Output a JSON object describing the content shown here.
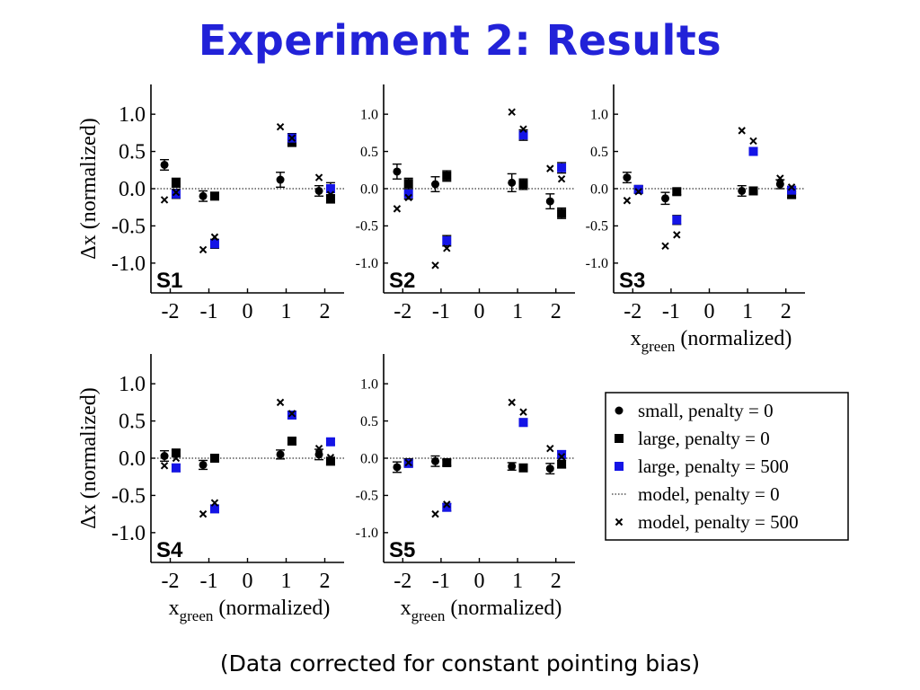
{
  "title": "Experiment 2: Results",
  "footer": "(Data corrected for constant pointing bias)",
  "colors": {
    "title": "#2222d8",
    "blue_series": "#1414e6",
    "black": "#000000"
  },
  "chart_data": [
    {
      "type": "scatter",
      "panel": "S1",
      "ylabel": "Δx (normalized)",
      "xlabel": "",
      "ylim": [
        -1.4,
        1.4
      ],
      "xlim": [
        -2.5,
        2.5
      ],
      "yticks": [
        "1.0",
        "0.5",
        "0.0",
        "-0.5",
        "-1.0"
      ],
      "xticks": [
        "-2",
        "-1",
        "0",
        "1",
        "2"
      ],
      "small_p0": [
        [
          -2.15,
          0.32,
          0.07
        ],
        [
          -1.15,
          -0.1,
          0.07
        ],
        [
          0.85,
          0.12,
          0.1
        ],
        [
          1.85,
          -0.03,
          0.07
        ]
      ],
      "large_p0": [
        [
          -1.85,
          0.08,
          0.06
        ],
        [
          -0.85,
          -0.1,
          0.05
        ],
        [
          1.15,
          0.62,
          0.04
        ],
        [
          2.15,
          -0.14,
          0.05
        ]
      ],
      "large_p500": [
        [
          -1.85,
          -0.07,
          0.06
        ],
        [
          -0.85,
          -0.74,
          0.06
        ],
        [
          1.15,
          0.68,
          0.06
        ],
        [
          2.15,
          0.0,
          0.08
        ]
      ],
      "model_p500": [
        [
          -2.15,
          -0.15
        ],
        [
          -1.85,
          -0.05
        ],
        [
          -1.15,
          -0.82
        ],
        [
          -0.85,
          -0.65
        ],
        [
          0.85,
          0.83
        ],
        [
          1.15,
          0.68
        ],
        [
          1.85,
          0.15
        ],
        [
          2.15,
          -0.08
        ]
      ]
    },
    {
      "type": "scatter",
      "panel": "S2",
      "ylabel": "",
      "xlabel": "",
      "ylim": [
        -1.4,
        1.4
      ],
      "xlim": [
        -2.5,
        2.5
      ],
      "yticks": [
        "1.0",
        "0.5",
        "0.0",
        "-0.5",
        "-1.0"
      ],
      "xticks": [
        "-2",
        "-1",
        "0",
        "1",
        "2"
      ],
      "small_p0": [
        [
          -2.15,
          0.23,
          0.1
        ],
        [
          -1.15,
          0.06,
          0.1
        ],
        [
          0.85,
          0.08,
          0.12
        ],
        [
          1.85,
          -0.17,
          0.1
        ]
      ],
      "large_p0": [
        [
          -1.85,
          0.07,
          0.07
        ],
        [
          -0.85,
          0.17,
          0.07
        ],
        [
          1.15,
          0.06,
          0.07
        ],
        [
          2.15,
          -0.33,
          0.07
        ]
      ],
      "large_p500": [
        [
          -1.85,
          -0.07,
          0.07
        ],
        [
          -0.85,
          -0.7,
          0.07
        ],
        [
          1.15,
          0.72,
          0.07
        ],
        [
          2.15,
          0.28,
          0.07
        ]
      ],
      "model_p500": [
        [
          -2.15,
          -0.27
        ],
        [
          -1.85,
          -0.12
        ],
        [
          -1.15,
          -1.03
        ],
        [
          -0.85,
          -0.8
        ],
        [
          0.85,
          1.03
        ],
        [
          1.15,
          0.8
        ],
        [
          1.85,
          0.27
        ],
        [
          2.15,
          0.13
        ]
      ]
    },
    {
      "type": "scatter",
      "panel": "S3",
      "ylabel": "",
      "xlabel": "x_green (normalized)",
      "ylim": [
        -1.4,
        1.4
      ],
      "xlim": [
        -2.5,
        2.5
      ],
      "yticks": [
        "1.0",
        "0.5",
        "0.0",
        "-0.5",
        "-1.0"
      ],
      "xticks": [
        "-2",
        "-1",
        "0",
        "1",
        "2"
      ],
      "small_p0": [
        [
          -2.15,
          0.15,
          0.07
        ],
        [
          -1.15,
          -0.13,
          0.08
        ],
        [
          0.85,
          -0.03,
          0.07
        ],
        [
          1.85,
          0.06,
          0.06
        ]
      ],
      "large_p0": [
        [
          -1.85,
          -0.01,
          0.04
        ],
        [
          -0.85,
          -0.04,
          0.04
        ],
        [
          1.15,
          -0.03,
          0.04
        ],
        [
          2.15,
          -0.08,
          0.04
        ]
      ],
      "large_p500": [
        [
          -1.85,
          -0.01,
          0.05
        ],
        [
          -0.85,
          -0.42,
          0.06
        ],
        [
          1.15,
          0.5,
          0.05
        ],
        [
          2.15,
          -0.02,
          0.05
        ]
      ],
      "model_p500": [
        [
          -2.15,
          -0.16
        ],
        [
          -1.85,
          -0.04
        ],
        [
          -1.15,
          -0.77
        ],
        [
          -0.85,
          -0.62
        ],
        [
          0.85,
          0.78
        ],
        [
          1.15,
          0.64
        ],
        [
          1.85,
          0.14
        ],
        [
          2.15,
          0.02
        ]
      ]
    },
    {
      "type": "scatter",
      "panel": "S4",
      "ylabel": "Δx (normalized)",
      "xlabel": "x_green (normalized)",
      "ylim": [
        -1.4,
        1.4
      ],
      "xlim": [
        -2.5,
        2.5
      ],
      "yticks": [
        "1.0",
        "0.5",
        "0.0",
        "-0.5",
        "-1.0"
      ],
      "xticks": [
        "-2",
        "-1",
        "0",
        "1",
        "2"
      ],
      "small_p0": [
        [
          -2.15,
          0.03,
          0.07
        ],
        [
          -1.15,
          -0.09,
          0.06
        ],
        [
          0.85,
          0.05,
          0.06
        ],
        [
          1.85,
          0.05,
          0.07
        ]
      ],
      "large_p0": [
        [
          -1.85,
          0.07,
          0.04
        ],
        [
          -0.85,
          0.0,
          0.04
        ],
        [
          1.15,
          0.23,
          0.04
        ],
        [
          2.15,
          -0.04,
          0.05
        ]
      ],
      "large_p500": [
        [
          -1.85,
          -0.13,
          0.05
        ],
        [
          -0.85,
          -0.68,
          0.05
        ],
        [
          1.15,
          0.58,
          0.05
        ],
        [
          2.15,
          0.22,
          0.04
        ]
      ],
      "model_p500": [
        [
          -2.15,
          -0.1
        ],
        [
          -1.85,
          0.0
        ],
        [
          -1.15,
          -0.75
        ],
        [
          -0.85,
          -0.6
        ],
        [
          0.85,
          0.75
        ],
        [
          1.15,
          0.6
        ],
        [
          1.85,
          0.13
        ],
        [
          2.15,
          0.01
        ]
      ]
    },
    {
      "type": "scatter",
      "panel": "S5",
      "ylabel": "",
      "xlabel": "x_green (normalized)",
      "ylim": [
        -1.4,
        1.4
      ],
      "xlim": [
        -2.5,
        2.5
      ],
      "yticks": [
        "1.0",
        "0.5",
        "0.0",
        "-0.5",
        "-1.0"
      ],
      "xticks": [
        "-2",
        "-1",
        "0",
        "1",
        "2"
      ],
      "small_p0": [
        [
          -2.15,
          -0.12,
          0.07
        ],
        [
          -1.15,
          -0.04,
          0.07
        ],
        [
          0.85,
          -0.11,
          0.05
        ],
        [
          1.85,
          -0.14,
          0.07
        ]
      ],
      "large_p0": [
        [
          -1.85,
          -0.06,
          0.04
        ],
        [
          -0.85,
          -0.06,
          0.04
        ],
        [
          1.15,
          -0.13,
          0.04
        ],
        [
          2.15,
          -0.08,
          0.05
        ]
      ],
      "large_p500": [
        [
          -1.85,
          -0.07,
          0.05
        ],
        [
          -0.85,
          -0.66,
          0.05
        ],
        [
          1.15,
          0.48,
          0.05
        ],
        [
          2.15,
          0.05,
          0.05
        ]
      ],
      "model_p500": [
        [
          -2.15,
          null
        ],
        [
          -1.85,
          -0.06
        ],
        [
          -1.15,
          -0.75
        ],
        [
          -0.85,
          -0.62
        ],
        [
          0.85,
          0.75
        ],
        [
          1.15,
          0.62
        ],
        [
          1.85,
          0.13
        ],
        [
          2.15,
          0.02
        ]
      ]
    }
  ],
  "legend": [
    {
      "marker": "circle",
      "label": "small, penalty = 0"
    },
    {
      "marker": "square",
      "label": "large, penalty = 0"
    },
    {
      "marker": "square-blue",
      "label": "large, penalty = 500"
    },
    {
      "marker": "dotted",
      "label": "model, penalty = 0"
    },
    {
      "marker": "cross",
      "label": "model, penalty = 500"
    }
  ]
}
